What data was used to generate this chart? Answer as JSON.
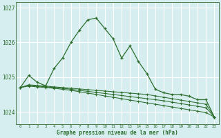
{
  "xlabel": "Graphe pression niveau de la mer (hPa)",
  "bg_color": "#d6eef0",
  "grid_color": "#ffffff",
  "line_color": "#2d6e2d",
  "hours": [
    0,
    1,
    2,
    3,
    4,
    5,
    6,
    7,
    8,
    9,
    10,
    11,
    12,
    13,
    14,
    15,
    16,
    17,
    18,
    19,
    20,
    21,
    22,
    23
  ],
  "series": [
    [
      1024.7,
      1025.05,
      1024.85,
      1024.75,
      1025.25,
      1025.55,
      1026.0,
      1026.35,
      1026.65,
      1026.7,
      1026.4,
      1026.1,
      1025.55,
      1025.9,
      1025.45,
      1025.1,
      1024.65,
      1024.55,
      1024.5,
      1024.5,
      1024.45,
      1024.35,
      1024.35,
      1023.85
    ],
    [
      1024.7,
      1024.78,
      1024.76,
      1024.74,
      1024.72,
      1024.7,
      1024.68,
      1024.66,
      1024.64,
      1024.62,
      1024.6,
      1024.58,
      1024.56,
      1024.54,
      1024.52,
      1024.5,
      1024.46,
      1024.42,
      1024.38,
      1024.34,
      1024.3,
      1024.26,
      1024.22,
      1023.85
    ],
    [
      1024.7,
      1024.76,
      1024.74,
      1024.72,
      1024.7,
      1024.68,
      1024.65,
      1024.62,
      1024.59,
      1024.56,
      1024.53,
      1024.5,
      1024.47,
      1024.44,
      1024.41,
      1024.38,
      1024.35,
      1024.32,
      1024.28,
      1024.24,
      1024.2,
      1024.16,
      1024.12,
      1023.85
    ],
    [
      1024.7,
      1024.74,
      1024.72,
      1024.7,
      1024.68,
      1024.65,
      1024.62,
      1024.58,
      1024.54,
      1024.5,
      1024.46,
      1024.42,
      1024.38,
      1024.34,
      1024.3,
      1024.26,
      1024.22,
      1024.18,
      1024.14,
      1024.1,
      1024.06,
      1024.02,
      1023.98,
      1023.85
    ]
  ],
  "ylim": [
    1023.65,
    1027.15
  ],
  "yticks": [
    1024.0,
    1025.0,
    1026.0,
    1027.0
  ],
  "ytick_labels": [
    "1024",
    "1025",
    "1026",
    "1027"
  ],
  "xticks": [
    0,
    1,
    2,
    3,
    4,
    5,
    6,
    7,
    8,
    9,
    10,
    11,
    12,
    13,
    14,
    15,
    16,
    17,
    18,
    19,
    20,
    21,
    22,
    23
  ]
}
